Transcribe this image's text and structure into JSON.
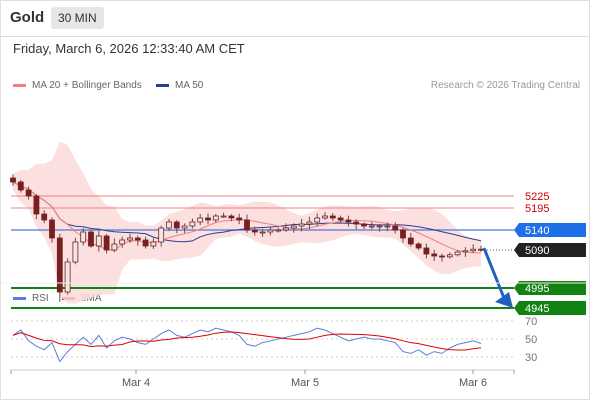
{
  "header": {
    "symbol": "Gold",
    "timeframe": "30 MIN",
    "timestamp": "Friday, March 6, 2026 12:33:40 AM CET"
  },
  "legend": [
    {
      "label": "MA 20 + Bollinger Bands",
      "color": "#f08080"
    },
    {
      "label": "MA 50",
      "color": "#27408b"
    }
  ],
  "credit": "Research © 2026 Trading Central",
  "rsi_legend": [
    {
      "label": "RSI",
      "color": "#5b7fd6"
    },
    {
      "label": "9MA",
      "color": "#e00000"
    }
  ],
  "chart_data": [
    {
      "type": "candlestick",
      "series": [
        "MA 20 + Bollinger Bands",
        "MA 50"
      ],
      "x_ticks": [
        "Mar 4",
        "Mar 5",
        "Mar 6"
      ],
      "ylim": [
        4930,
        5330
      ],
      "levels": [
        {
          "value": 5225,
          "label": "5225",
          "style": "resistance",
          "color": "#cc0000"
        },
        {
          "value": 5195,
          "label": "5195",
          "style": "resistance",
          "color": "#cc0000"
        },
        {
          "value": 5140,
          "label": "5140",
          "style": "pivot",
          "color": "#1e6fe8"
        },
        {
          "value": 5090,
          "label": "5090",
          "style": "last-price",
          "color": "#222222"
        },
        {
          "value": 4995,
          "label": "4995",
          "style": "target",
          "color": "#128212"
        },
        {
          "value": 4945,
          "label": "4945",
          "style": "target",
          "color": "#128212"
        }
      ],
      "arrow": {
        "direction": "down",
        "from": 5095,
        "to": 4945,
        "color": "#2060c0"
      },
      "close_path": [
        5260,
        5240,
        5225,
        5180,
        5165,
        5120,
        4985,
        5060,
        5110,
        5135,
        5100,
        5125,
        5090,
        5105,
        5115,
        5120,
        5115,
        5100,
        5110,
        5145,
        5160,
        5145,
        5150,
        5160,
        5170,
        5165,
        5175,
        5175,
        5170,
        5165,
        5140,
        5135,
        5135,
        5140,
        5140,
        5145,
        5150,
        5155,
        5160,
        5170,
        5175,
        5170,
        5165,
        5160,
        5155,
        5150,
        5150,
        5150,
        5150,
        5140,
        5120,
        5105,
        5095,
        5080,
        5075,
        5073,
        5078,
        5085,
        5088,
        5092,
        5090
      ]
    },
    {
      "type": "line",
      "title": "RSI",
      "series": [
        "RSI",
        "9MA"
      ],
      "ylim": [
        20,
        80
      ],
      "y_ticks": [
        70,
        50,
        30
      ]
    }
  ]
}
